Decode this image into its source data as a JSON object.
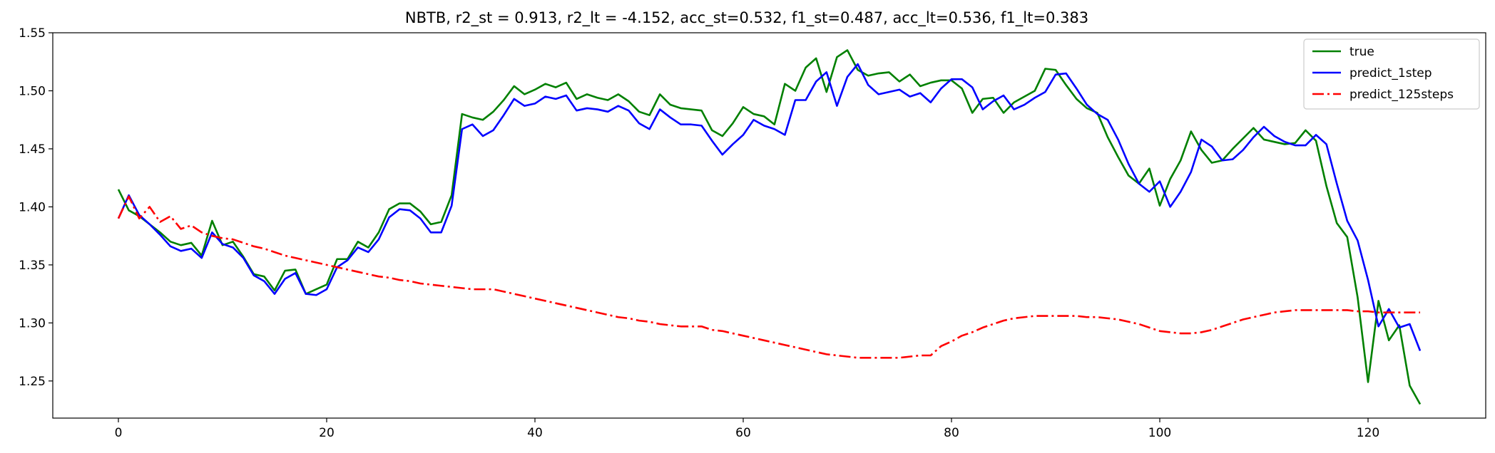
{
  "chart_data": {
    "type": "line",
    "title": "NBTB, r2_st = 0.913, r2_lt = -4.152, acc_st=0.532, f1_st=0.487, acc_lt=0.536, f1_lt=0.383",
    "xlabel": "",
    "ylabel": "",
    "xlim": [
      -6.3,
      131.3
    ],
    "ylim": [
      1.218,
      1.55
    ],
    "xticks": [
      0,
      20,
      40,
      60,
      80,
      100,
      120
    ],
    "xtick_labels": [
      "0",
      "20",
      "40",
      "60",
      "80",
      "100",
      "120"
    ],
    "yticks": [
      1.25,
      1.3,
      1.35,
      1.4,
      1.45,
      1.5,
      1.55
    ],
    "ytick_labels": [
      "1.25",
      "1.30",
      "1.35",
      "1.40",
      "1.45",
      "1.50",
      "1.55"
    ],
    "grid": false,
    "legend_position": "top-right",
    "series": [
      {
        "name": "true",
        "color": "#008000",
        "dash": "solid",
        "values": [
          1.415,
          1.397,
          1.392,
          1.385,
          1.378,
          1.37,
          1.367,
          1.369,
          1.358,
          1.388,
          1.367,
          1.37,
          1.357,
          1.342,
          1.34,
          1.328,
          1.345,
          1.346,
          1.325,
          1.329,
          1.333,
          1.355,
          1.355,
          1.37,
          1.365,
          1.378,
          1.398,
          1.403,
          1.403,
          1.396,
          1.385,
          1.387,
          1.41,
          1.48,
          1.477,
          1.475,
          1.482,
          1.492,
          1.504,
          1.497,
          1.501,
          1.506,
          1.503,
          1.507,
          1.493,
          1.497,
          1.494,
          1.492,
          1.497,
          1.491,
          1.482,
          1.479,
          1.497,
          1.488,
          1.485,
          1.484,
          1.483,
          1.466,
          1.461,
          1.472,
          1.486,
          1.48,
          1.478,
          1.471,
          1.506,
          1.5,
          1.52,
          1.528,
          1.499,
          1.529,
          1.535,
          1.518,
          1.513,
          1.515,
          1.516,
          1.508,
          1.514,
          1.504,
          1.507,
          1.509,
          1.509,
          1.502,
          1.481,
          1.493,
          1.494,
          1.481,
          1.49,
          1.495,
          1.5,
          1.519,
          1.518,
          1.505,
          1.493,
          1.485,
          1.481,
          1.46,
          1.443,
          1.427,
          1.42,
          1.433,
          1.401,
          1.424,
          1.44,
          1.465,
          1.449,
          1.438,
          1.44,
          1.45,
          1.459,
          1.468,
          1.458,
          1.456,
          1.454,
          1.455,
          1.466,
          1.457,
          1.418,
          1.386,
          1.374,
          1.322,
          1.249,
          1.319,
          1.285,
          1.298,
          1.246,
          1.23
        ]
      },
      {
        "name": "predict_1step",
        "color": "#0000ff",
        "dash": "solid",
        "values": [
          1.39,
          1.41,
          1.393,
          1.385,
          1.376,
          1.366,
          1.362,
          1.364,
          1.356,
          1.378,
          1.368,
          1.365,
          1.356,
          1.341,
          1.336,
          1.325,
          1.338,
          1.343,
          1.325,
          1.324,
          1.329,
          1.348,
          1.354,
          1.365,
          1.361,
          1.372,
          1.391,
          1.398,
          1.397,
          1.39,
          1.378,
          1.378,
          1.401,
          1.467,
          1.471,
          1.461,
          1.466,
          1.479,
          1.493,
          1.487,
          1.489,
          1.495,
          1.493,
          1.496,
          1.483,
          1.485,
          1.484,
          1.482,
          1.487,
          1.483,
          1.472,
          1.467,
          1.484,
          1.477,
          1.471,
          1.471,
          1.47,
          1.457,
          1.445,
          1.454,
          1.462,
          1.475,
          1.47,
          1.467,
          1.462,
          1.492,
          1.492,
          1.508,
          1.516,
          1.487,
          1.512,
          1.523,
          1.505,
          1.497,
          1.499,
          1.501,
          1.495,
          1.498,
          1.49,
          1.502,
          1.51,
          1.51,
          1.503,
          1.484,
          1.491,
          1.496,
          1.484,
          1.488,
          1.494,
          1.499,
          1.514,
          1.515,
          1.502,
          1.488,
          1.48,
          1.475,
          1.458,
          1.437,
          1.42,
          1.413,
          1.422,
          1.4,
          1.413,
          1.43,
          1.458,
          1.452,
          1.44,
          1.441,
          1.449,
          1.46,
          1.469,
          1.461,
          1.456,
          1.453,
          1.453,
          1.462,
          1.454,
          1.42,
          1.388,
          1.371,
          1.337,
          1.297,
          1.312,
          1.296,
          1.299,
          1.276
        ]
      },
      {
        "name": "predict_125steps",
        "color": "#ff0000",
        "dash": "dashdot",
        "values": [
          1.39,
          1.409,
          1.39,
          1.4,
          1.387,
          1.392,
          1.381,
          1.384,
          1.378,
          1.375,
          1.373,
          1.372,
          1.369,
          1.366,
          1.364,
          1.361,
          1.358,
          1.356,
          1.354,
          1.352,
          1.35,
          1.348,
          1.346,
          1.344,
          1.342,
          1.34,
          1.339,
          1.337,
          1.336,
          1.334,
          1.333,
          1.332,
          1.331,
          1.33,
          1.329,
          1.329,
          1.329,
          1.327,
          1.325,
          1.323,
          1.321,
          1.319,
          1.317,
          1.315,
          1.313,
          1.311,
          1.309,
          1.307,
          1.305,
          1.304,
          1.302,
          1.301,
          1.299,
          1.298,
          1.297,
          1.297,
          1.297,
          1.294,
          1.293,
          1.291,
          1.289,
          1.287,
          1.285,
          1.283,
          1.281,
          1.279,
          1.277,
          1.275,
          1.273,
          1.272,
          1.271,
          1.27,
          1.27,
          1.27,
          1.27,
          1.27,
          1.271,
          1.272,
          1.272,
          1.28,
          1.284,
          1.289,
          1.292,
          1.296,
          1.299,
          1.302,
          1.304,
          1.305,
          1.306,
          1.306,
          1.306,
          1.306,
          1.306,
          1.305,
          1.305,
          1.304,
          1.303,
          1.301,
          1.299,
          1.296,
          1.293,
          1.292,
          1.291,
          1.291,
          1.292,
          1.294,
          1.297,
          1.3,
          1.303,
          1.305,
          1.307,
          1.309,
          1.31,
          1.311,
          1.311,
          1.311,
          1.311,
          1.311,
          1.311,
          1.31,
          1.31,
          1.309,
          1.309,
          1.309,
          1.309,
          1.309
        ]
      }
    ]
  }
}
